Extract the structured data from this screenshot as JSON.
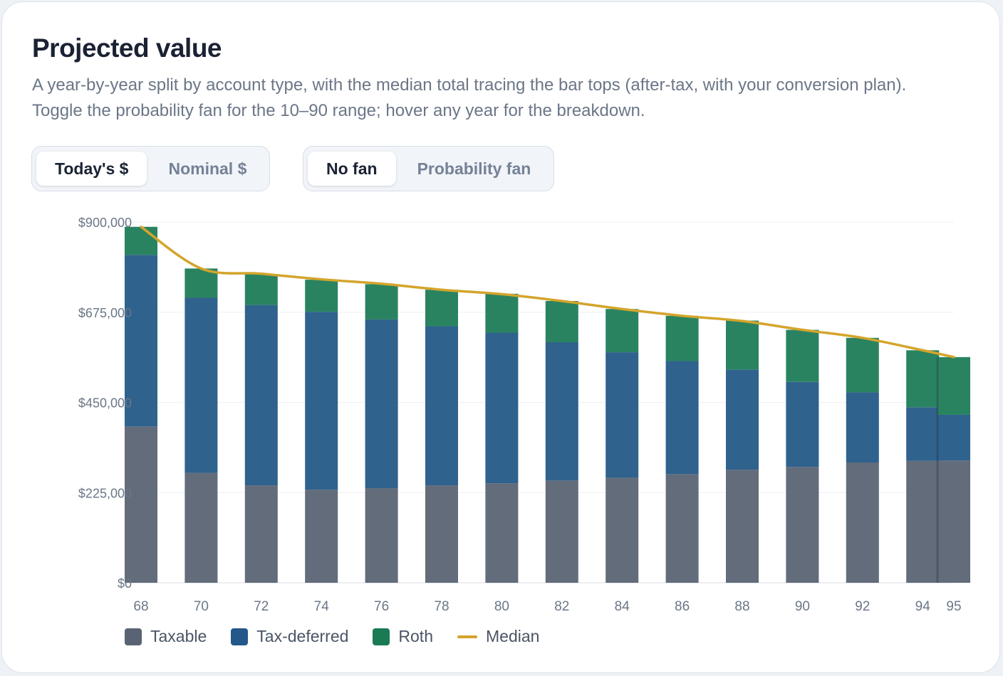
{
  "card": {
    "title": "Projected value",
    "subtitle": "A year-by-year split by account type, with the median total tracing the bar tops (after-tax, with your conversion plan). Toggle the probability fan for the 10–90 range; hover any year for the breakdown."
  },
  "toggles": {
    "currency": {
      "options": [
        "Today's $",
        "Nominal $"
      ],
      "selected": "Today's $"
    },
    "fan": {
      "options": [
        "No fan",
        "Probability fan"
      ],
      "selected": "No fan"
    }
  },
  "colors": {
    "taxable": "#626c7b",
    "tax_deferred": "#2f628d",
    "roth": "#2a8360",
    "median": "#d4a52c",
    "legend_taxable": "#596373",
    "legend_tax_deferred": "#24578a",
    "legend_roth": "#197a54"
  },
  "chart_data": {
    "type": "bar",
    "stacked": true,
    "grid": true,
    "legend_placement": "bottom-left",
    "ylim": [
      0,
      900000
    ],
    "y_ticks": [
      "$0",
      "$225,000",
      "$450,000",
      "$675,000",
      "$900,000"
    ],
    "y_tick_values": [
      0,
      225000,
      450000,
      675000,
      900000
    ],
    "categories": [
      "68",
      "70",
      "72",
      "74",
      "76",
      "78",
      "80",
      "82",
      "84",
      "86",
      "88",
      "90",
      "92",
      "94",
      "95"
    ],
    "series": [
      {
        "name": "Taxable",
        "key": "taxable",
        "values": [
          390000,
          274000,
          243000,
          232000,
          236000,
          243000,
          248000,
          255000,
          262000,
          271000,
          282000,
          289000,
          300000,
          304000,
          305000
        ]
      },
      {
        "name": "Tax-deferred",
        "key": "tax_deferred",
        "values": [
          428000,
          437000,
          450000,
          444000,
          421000,
          397000,
          376000,
          345000,
          313000,
          282000,
          250000,
          212000,
          175000,
          134000,
          114000
        ]
      },
      {
        "name": "Roth",
        "key": "roth",
        "values": [
          70000,
          73000,
          77000,
          80000,
          88000,
          91000,
          97000,
          103000,
          108000,
          113000,
          122000,
          130000,
          136000,
          142000,
          144000
        ]
      }
    ],
    "median": {
      "name": "Median",
      "values": [
        888000,
        784000,
        771000,
        757000,
        746000,
        731000,
        720000,
        703000,
        683000,
        666000,
        653000,
        631000,
        611000,
        580000,
        563000
      ]
    },
    "legend": [
      "Taxable",
      "Tax-deferred",
      "Roth",
      "Median"
    ]
  }
}
